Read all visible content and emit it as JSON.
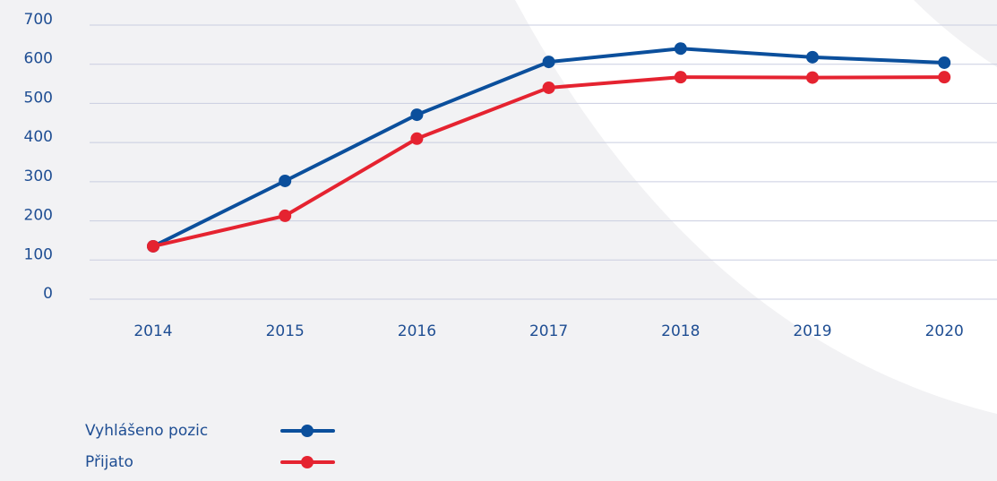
{
  "chart_data": {
    "type": "line",
    "categories": [
      "2014",
      "2015",
      "2016",
      "2017",
      "2018",
      "2019",
      "2020"
    ],
    "series": [
      {
        "name": "Vyhlášeno pozic",
        "color": "#0b4f9c",
        "values": [
          135,
          302,
          471,
          606,
          640,
          618,
          604
        ]
      },
      {
        "name": "Přijato",
        "color": "#e52330",
        "values": [
          135,
          213,
          410,
          540,
          567,
          566,
          567
        ]
      }
    ],
    "ylim": [
      0,
      700
    ],
    "yticks": [
      0,
      100,
      200,
      300,
      400,
      500,
      600,
      700
    ],
    "grid": true
  }
}
